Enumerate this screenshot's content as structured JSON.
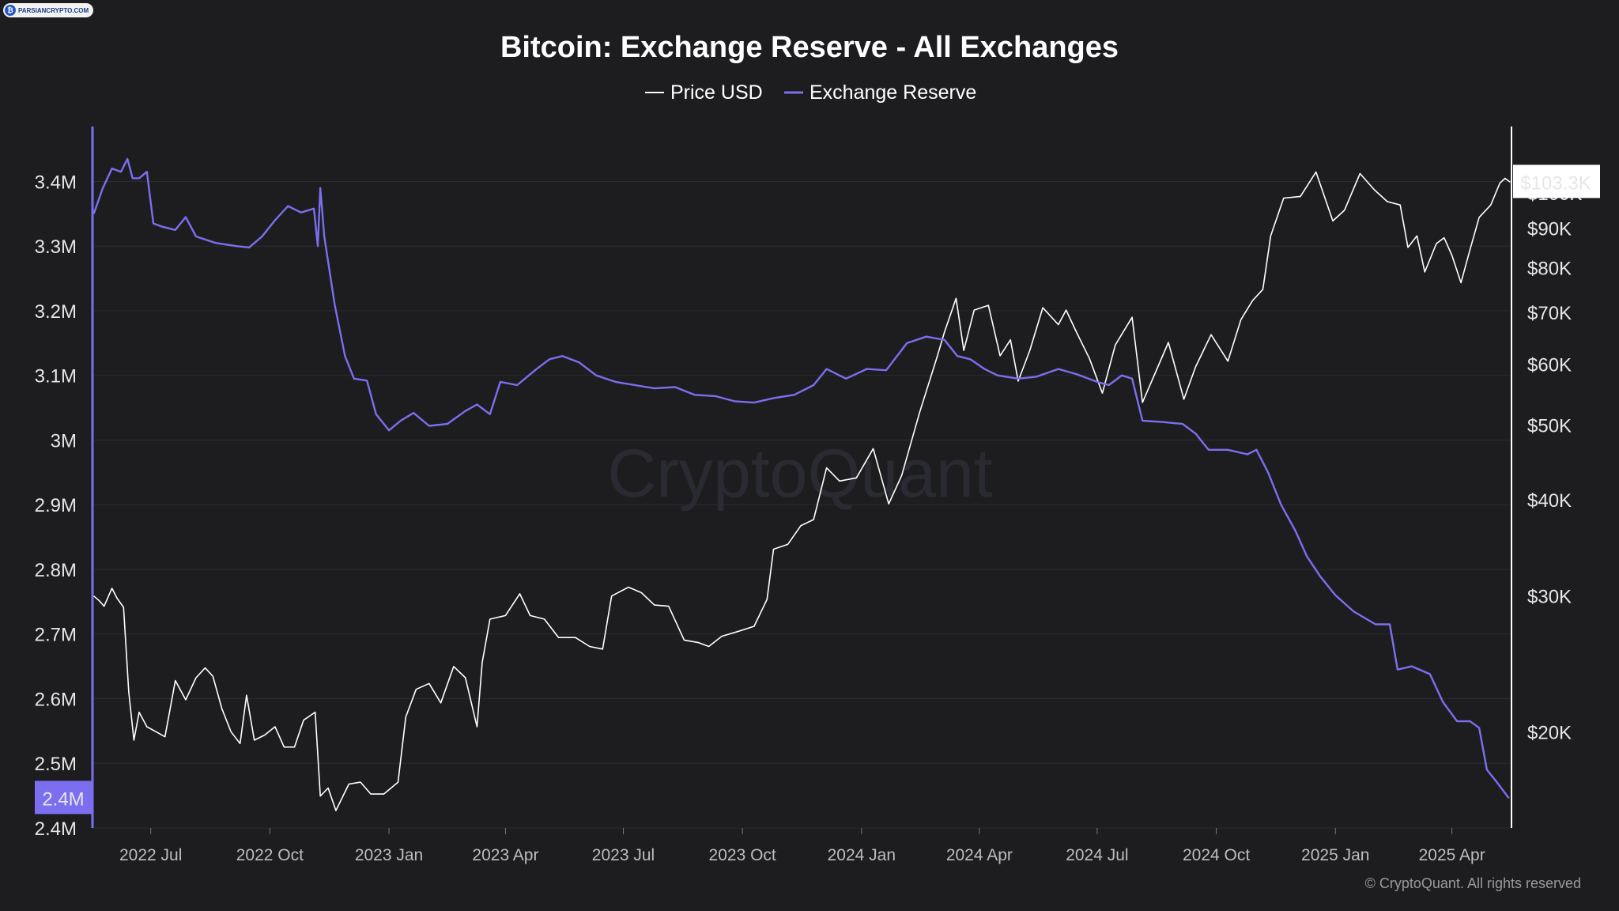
{
  "watermark_badge": {
    "text": "PARSIANCRYPTO.COM",
    "icon": "bitcoin-icon"
  },
  "chart_data": {
    "type": "line",
    "title": "Bitcoin: Exchange Reserve - All Exchanges",
    "legend": {
      "placement": "top-center",
      "entries": [
        "Price USD",
        "Exchange Reserve"
      ]
    },
    "watermark": "CryptoQuant",
    "footer": "© CryptoQuant. All rights reserved",
    "x_ticks": [
      "2022 Jul",
      "2022 Oct",
      "2023 Jan",
      "2023 Apr",
      "2023 Jul",
      "2023 Oct",
      "2024 Jan",
      "2024 Apr",
      "2024 Jul",
      "2024 Oct",
      "2025 Jan",
      "2025 Apr"
    ],
    "x_tick_dates": [
      "2022-07-01",
      "2022-10-01",
      "2023-01-01",
      "2023-04-01",
      "2023-07-01",
      "2023-10-01",
      "2024-01-01",
      "2024-04-01",
      "2024-07-01",
      "2024-10-01",
      "2025-01-01",
      "2025-04-01"
    ],
    "xlim": [
      "2022-05-17",
      "2025-05-17"
    ],
    "left_axis": {
      "ticks": [
        3400000,
        3300000,
        3200000,
        3100000,
        3000000,
        2900000,
        2800000,
        2700000,
        2600000,
        2500000,
        2400000
      ],
      "tick_labels": [
        "3.4M",
        "3.3M",
        "3.2M",
        "3.1M",
        "3M",
        "2.9M",
        "2.8M",
        "2.7M",
        "2.6M",
        "2.5M",
        "2.4M"
      ],
      "ylim": [
        2400000,
        3485000
      ],
      "current_label": "2.4M",
      "current_value": 2446000,
      "color": "#7b6ff0"
    },
    "right_axis": {
      "scale": "log",
      "ticks": [
        100000,
        90000,
        80000,
        70000,
        60000,
        50000,
        40000,
        30000,
        20000
      ],
      "tick_labels": [
        "$100K",
        "$90K",
        "$80K",
        "$70K",
        "$60K",
        "$50K",
        "$40K",
        "$30K",
        "$20K"
      ],
      "ylim": [
        15000,
        122000
      ],
      "current_label": "$103.3K",
      "current_value": 103300,
      "color": "#ffffff"
    },
    "series": [
      {
        "name": "Exchange Reserve",
        "axis": "left",
        "color": "#7b6ff0",
        "points": [
          [
            "2022-05-18",
            3350000
          ],
          [
            "2022-05-25",
            3390000
          ],
          [
            "2022-06-01",
            3420000
          ],
          [
            "2022-06-08",
            3415000
          ],
          [
            "2022-06-13",
            3435000
          ],
          [
            "2022-06-17",
            3405000
          ],
          [
            "2022-06-22",
            3405000
          ],
          [
            "2022-06-28",
            3415000
          ],
          [
            "2022-07-03",
            3335000
          ],
          [
            "2022-07-10",
            3330000
          ],
          [
            "2022-07-20",
            3325000
          ],
          [
            "2022-07-28",
            3345000
          ],
          [
            "2022-08-05",
            3315000
          ],
          [
            "2022-08-20",
            3305000
          ],
          [
            "2022-09-05",
            3300000
          ],
          [
            "2022-09-15",
            3298000
          ],
          [
            "2022-09-25",
            3315000
          ],
          [
            "2022-10-05",
            3340000
          ],
          [
            "2022-10-15",
            3362000
          ],
          [
            "2022-10-25",
            3352000
          ],
          [
            "2022-11-04",
            3358000
          ],
          [
            "2022-11-07",
            3300000
          ],
          [
            "2022-11-09",
            3390000
          ],
          [
            "2022-11-12",
            3315000
          ],
          [
            "2022-11-20",
            3210000
          ],
          [
            "2022-11-28",
            3130000
          ],
          [
            "2022-12-05",
            3095000
          ],
          [
            "2022-12-15",
            3092000
          ],
          [
            "2022-12-22",
            3040000
          ],
          [
            "2023-01-01",
            3015000
          ],
          [
            "2023-01-10",
            3030000
          ],
          [
            "2023-01-20",
            3042000
          ],
          [
            "2023-02-01",
            3022000
          ],
          [
            "2023-02-15",
            3025000
          ],
          [
            "2023-03-01",
            3045000
          ],
          [
            "2023-03-10",
            3055000
          ],
          [
            "2023-03-20",
            3040000
          ],
          [
            "2023-03-28",
            3090000
          ],
          [
            "2023-04-10",
            3085000
          ],
          [
            "2023-04-25",
            3110000
          ],
          [
            "2023-05-05",
            3125000
          ],
          [
            "2023-05-15",
            3130000
          ],
          [
            "2023-05-28",
            3120000
          ],
          [
            "2023-06-10",
            3100000
          ],
          [
            "2023-06-25",
            3090000
          ],
          [
            "2023-07-10",
            3085000
          ],
          [
            "2023-07-25",
            3080000
          ],
          [
            "2023-08-10",
            3082000
          ],
          [
            "2023-08-25",
            3070000
          ],
          [
            "2023-09-10",
            3068000
          ],
          [
            "2023-09-25",
            3060000
          ],
          [
            "2023-10-10",
            3058000
          ],
          [
            "2023-10-25",
            3065000
          ],
          [
            "2023-11-10",
            3070000
          ],
          [
            "2023-11-25",
            3085000
          ],
          [
            "2023-12-05",
            3110000
          ],
          [
            "2023-12-20",
            3095000
          ],
          [
            "2024-01-05",
            3110000
          ],
          [
            "2024-01-20",
            3108000
          ],
          [
            "2024-02-05",
            3150000
          ],
          [
            "2024-02-20",
            3160000
          ],
          [
            "2024-03-05",
            3155000
          ],
          [
            "2024-03-15",
            3130000
          ],
          [
            "2024-03-25",
            3125000
          ],
          [
            "2024-04-05",
            3110000
          ],
          [
            "2024-04-15",
            3100000
          ],
          [
            "2024-05-01",
            3095000
          ],
          [
            "2024-05-15",
            3098000
          ],
          [
            "2024-06-01",
            3110000
          ],
          [
            "2024-06-15",
            3102000
          ],
          [
            "2024-07-01",
            3090000
          ],
          [
            "2024-07-10",
            3085000
          ],
          [
            "2024-07-20",
            3100000
          ],
          [
            "2024-07-28",
            3095000
          ],
          [
            "2024-08-05",
            3030000
          ],
          [
            "2024-08-20",
            3028000
          ],
          [
            "2024-09-05",
            3025000
          ],
          [
            "2024-09-15",
            3010000
          ],
          [
            "2024-09-25",
            2985000
          ],
          [
            "2024-10-10",
            2985000
          ],
          [
            "2024-10-25",
            2978000
          ],
          [
            "2024-11-01",
            2985000
          ],
          [
            "2024-11-10",
            2950000
          ],
          [
            "2024-11-20",
            2900000
          ],
          [
            "2024-12-01",
            2860000
          ],
          [
            "2024-12-10",
            2820000
          ],
          [
            "2024-12-20",
            2790000
          ],
          [
            "2025-01-01",
            2760000
          ],
          [
            "2025-01-15",
            2735000
          ],
          [
            "2025-02-01",
            2715000
          ],
          [
            "2025-02-12",
            2715000
          ],
          [
            "2025-02-18",
            2645000
          ],
          [
            "2025-03-01",
            2650000
          ],
          [
            "2025-03-15",
            2638000
          ],
          [
            "2025-03-25",
            2595000
          ],
          [
            "2025-04-05",
            2565000
          ],
          [
            "2025-04-15",
            2565000
          ],
          [
            "2025-04-22",
            2555000
          ],
          [
            "2025-04-28",
            2490000
          ],
          [
            "2025-05-06",
            2470000
          ],
          [
            "2025-05-15",
            2446000
          ]
        ]
      },
      {
        "name": "Price USD",
        "axis": "right",
        "color": "#ffffff",
        "points": [
          [
            "2022-05-18",
            30000
          ],
          [
            "2022-05-22",
            29600
          ],
          [
            "2022-05-26",
            29100
          ],
          [
            "2022-06-01",
            30700
          ],
          [
            "2022-06-05",
            29800
          ],
          [
            "2022-06-10",
            29000
          ],
          [
            "2022-06-14",
            22500
          ],
          [
            "2022-06-18",
            19500
          ],
          [
            "2022-06-22",
            21200
          ],
          [
            "2022-06-28",
            20300
          ],
          [
            "2022-07-05",
            20000
          ],
          [
            "2022-07-12",
            19700
          ],
          [
            "2022-07-20",
            23300
          ],
          [
            "2022-07-28",
            22000
          ],
          [
            "2022-08-05",
            23500
          ],
          [
            "2022-08-12",
            24200
          ],
          [
            "2022-08-18",
            23600
          ],
          [
            "2022-08-25",
            21400
          ],
          [
            "2022-09-01",
            20000
          ],
          [
            "2022-09-08",
            19300
          ],
          [
            "2022-09-13",
            22300
          ],
          [
            "2022-09-19",
            19500
          ],
          [
            "2022-09-27",
            19800
          ],
          [
            "2022-10-05",
            20300
          ],
          [
            "2022-10-12",
            19100
          ],
          [
            "2022-10-20",
            19100
          ],
          [
            "2022-10-27",
            20700
          ],
          [
            "2022-11-05",
            21200
          ],
          [
            "2022-11-09",
            16500
          ],
          [
            "2022-11-15",
            16900
          ],
          [
            "2022-11-21",
            15800
          ],
          [
            "2022-12-01",
            17100
          ],
          [
            "2022-12-10",
            17200
          ],
          [
            "2022-12-18",
            16600
          ],
          [
            "2022-12-28",
            16600
          ],
          [
            "2023-01-08",
            17200
          ],
          [
            "2023-01-14",
            20900
          ],
          [
            "2023-01-22",
            22700
          ],
          [
            "2023-02-01",
            23100
          ],
          [
            "2023-02-10",
            21800
          ],
          [
            "2023-02-20",
            24300
          ],
          [
            "2023-03-01",
            23500
          ],
          [
            "2023-03-10",
            20300
          ],
          [
            "2023-03-14",
            24600
          ],
          [
            "2023-03-20",
            28000
          ],
          [
            "2023-04-01",
            28300
          ],
          [
            "2023-04-12",
            30200
          ],
          [
            "2023-04-20",
            28300
          ],
          [
            "2023-05-01",
            28000
          ],
          [
            "2023-05-12",
            26500
          ],
          [
            "2023-05-25",
            26500
          ],
          [
            "2023-06-05",
            25800
          ],
          [
            "2023-06-15",
            25600
          ],
          [
            "2023-06-22",
            30000
          ],
          [
            "2023-07-05",
            30800
          ],
          [
            "2023-07-15",
            30300
          ],
          [
            "2023-07-25",
            29200
          ],
          [
            "2023-08-05",
            29100
          ],
          [
            "2023-08-17",
            26300
          ],
          [
            "2023-08-28",
            26100
          ],
          [
            "2023-09-05",
            25800
          ],
          [
            "2023-09-15",
            26600
          ],
          [
            "2023-09-28",
            27000
          ],
          [
            "2023-10-10",
            27400
          ],
          [
            "2023-10-20",
            29700
          ],
          [
            "2023-10-25",
            34500
          ],
          [
            "2023-11-05",
            35000
          ],
          [
            "2023-11-15",
            37000
          ],
          [
            "2023-11-25",
            37700
          ],
          [
            "2023-12-05",
            44000
          ],
          [
            "2023-12-15",
            42300
          ],
          [
            "2023-12-28",
            42700
          ],
          [
            "2024-01-10",
            46600
          ],
          [
            "2024-01-22",
            39500
          ],
          [
            "2024-02-01",
            43000
          ],
          [
            "2024-02-15",
            52000
          ],
          [
            "2024-02-28",
            61000
          ],
          [
            "2024-03-05",
            66000
          ],
          [
            "2024-03-14",
            73000
          ],
          [
            "2024-03-20",
            62500
          ],
          [
            "2024-03-28",
            70500
          ],
          [
            "2024-04-08",
            71500
          ],
          [
            "2024-04-17",
            61500
          ],
          [
            "2024-04-25",
            64500
          ],
          [
            "2024-05-01",
            57000
          ],
          [
            "2024-05-10",
            62500
          ],
          [
            "2024-05-20",
            71000
          ],
          [
            "2024-06-01",
            67500
          ],
          [
            "2024-06-07",
            70500
          ],
          [
            "2024-06-15",
            66000
          ],
          [
            "2024-06-25",
            61000
          ],
          [
            "2024-07-05",
            55000
          ],
          [
            "2024-07-15",
            63500
          ],
          [
            "2024-07-28",
            69000
          ],
          [
            "2024-08-05",
            53500
          ],
          [
            "2024-08-15",
            58500
          ],
          [
            "2024-08-25",
            64000
          ],
          [
            "2024-09-06",
            54000
          ],
          [
            "2024-09-15",
            59500
          ],
          [
            "2024-09-27",
            65500
          ],
          [
            "2024-10-10",
            60500
          ],
          [
            "2024-10-20",
            68500
          ],
          [
            "2024-10-29",
            72500
          ],
          [
            "2024-11-06",
            75000
          ],
          [
            "2024-11-12",
            88000
          ],
          [
            "2024-11-22",
            98500
          ],
          [
            "2024-12-05",
            99000
          ],
          [
            "2024-12-17",
            106500
          ],
          [
            "2024-12-30",
            92000
          ],
          [
            "2025-01-08",
            95000
          ],
          [
            "2025-01-20",
            106000
          ],
          [
            "2025-01-31",
            101000
          ],
          [
            "2025-02-10",
            97500
          ],
          [
            "2025-02-20",
            96500
          ],
          [
            "2025-02-26",
            85000
          ],
          [
            "2025-03-05",
            88000
          ],
          [
            "2025-03-11",
            79000
          ],
          [
            "2025-03-20",
            86000
          ],
          [
            "2025-03-26",
            87500
          ],
          [
            "2025-04-01",
            83000
          ],
          [
            "2025-04-08",
            76500
          ],
          [
            "2025-04-15",
            84500
          ],
          [
            "2025-04-22",
            93000
          ],
          [
            "2025-05-01",
            96500
          ],
          [
            "2025-05-08",
            103000
          ],
          [
            "2025-05-12",
            104500
          ],
          [
            "2025-05-16",
            103300
          ]
        ]
      }
    ]
  }
}
